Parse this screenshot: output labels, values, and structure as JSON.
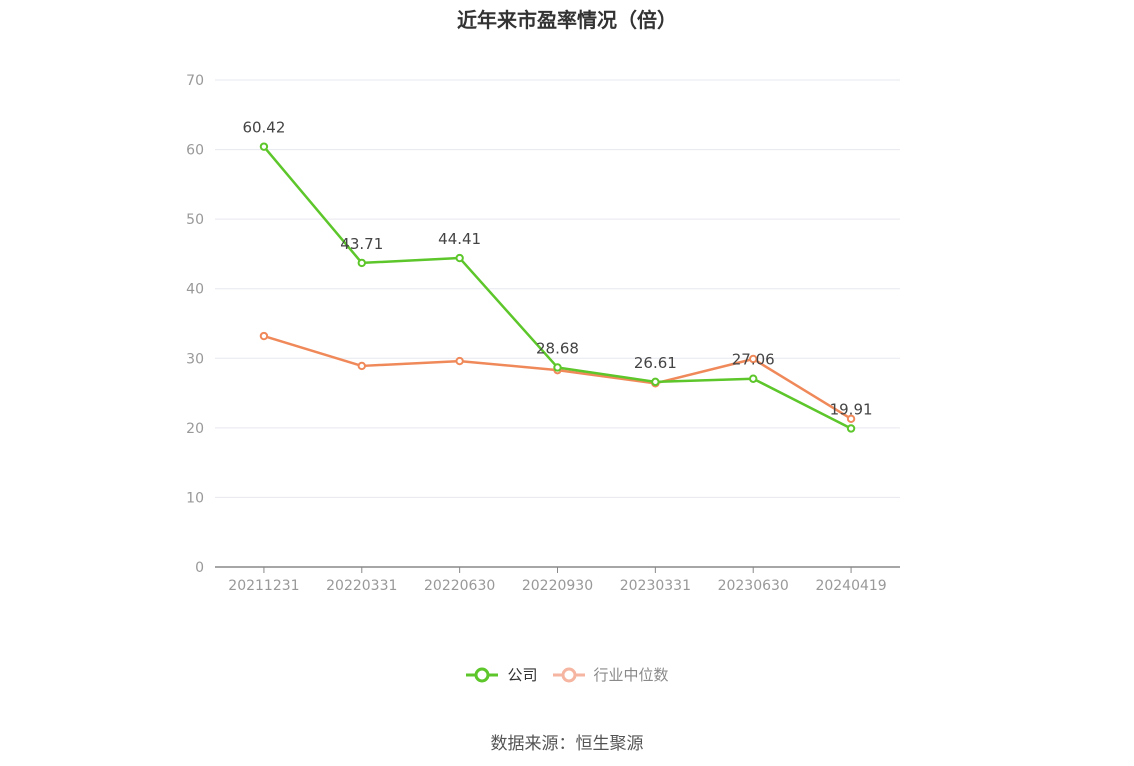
{
  "chart_data": {
    "type": "line",
    "title": "近年来市盈率情况（倍）",
    "categories": [
      "20211231",
      "20220331",
      "20220630",
      "20220930",
      "20230331",
      "20230630",
      "20240419"
    ],
    "series": [
      {
        "name": "公司",
        "values": [
          60.42,
          43.71,
          44.41,
          28.68,
          26.61,
          27.06,
          19.91
        ],
        "color": "#5cc62a",
        "show_labels": true
      },
      {
        "name": "行业中位数",
        "values": [
          33.2,
          28.9,
          29.6,
          28.3,
          26.4,
          29.9,
          21.3
        ],
        "color": "#f0895a",
        "legend_color": "#f5b5a0",
        "show_labels": false
      }
    ],
    "ylim": [
      0,
      70
    ],
    "yticks": [
      0,
      10,
      20,
      30,
      40,
      50,
      60,
      70
    ],
    "grid": true,
    "legend": "bottom-center"
  },
  "source_text": "数据来源：恒生聚源"
}
